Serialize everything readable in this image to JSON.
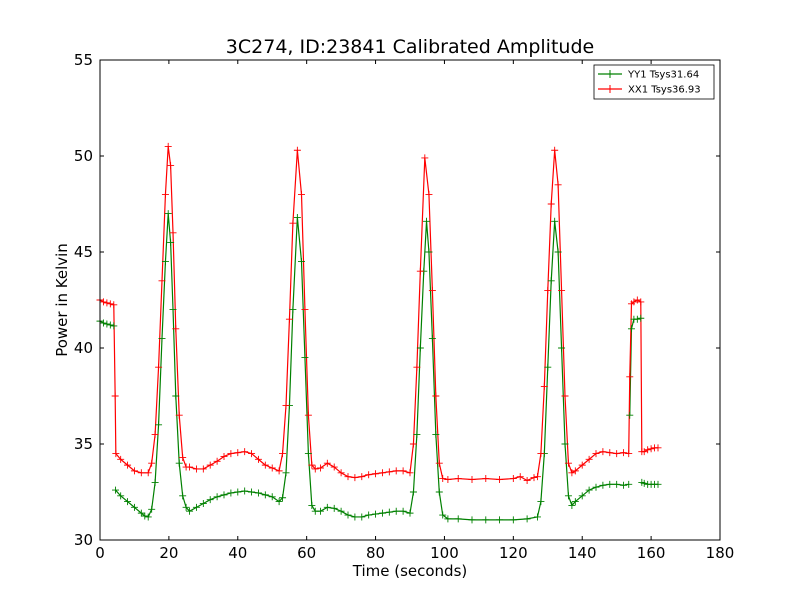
{
  "chart_data": {
    "type": "line",
    "title": "3C274, ID:23841 Calibrated Amplitude",
    "xlabel": "Time (seconds)",
    "ylabel": "Power in Kelvin",
    "xlim": [
      0,
      180
    ],
    "ylim": [
      30,
      55
    ],
    "xticks": [
      0,
      20,
      40,
      60,
      80,
      100,
      120,
      140,
      160,
      180
    ],
    "yticks": [
      30,
      35,
      40,
      45,
      50,
      55
    ],
    "grid": false,
    "legend_position": "top-right",
    "marker": "+",
    "series": [
      {
        "name": "YY1 Tsys31.64",
        "color": "#008000",
        "segments": [
          [
            [
              0,
              41.4
            ],
            [
              1,
              41.3
            ],
            [
              2,
              41.25
            ],
            [
              3,
              41.2
            ],
            [
              4,
              41.15
            ]
          ],
          [
            [
              4.5,
              32.6
            ],
            [
              6,
              32.3
            ],
            [
              8,
              32.0
            ],
            [
              10,
              31.7
            ],
            [
              12,
              31.4
            ],
            [
              13,
              31.25
            ],
            [
              14,
              31.2
            ],
            [
              15,
              31.6
            ],
            [
              16,
              33.0
            ],
            [
              17,
              36.0
            ],
            [
              18,
              40.5
            ],
            [
              19,
              44.5
            ],
            [
              19.8,
              47.0
            ],
            [
              20.5,
              45.5
            ],
            [
              21.2,
              42.0
            ],
            [
              22,
              37.5
            ],
            [
              23,
              34.0
            ],
            [
              24,
              32.3
            ],
            [
              25,
              31.7
            ],
            [
              26,
              31.5
            ],
            [
              28,
              31.7
            ],
            [
              30,
              31.9
            ],
            [
              32,
              32.1
            ],
            [
              34,
              32.25
            ],
            [
              36,
              32.35
            ],
            [
              38,
              32.45
            ],
            [
              40,
              32.5
            ],
            [
              42,
              32.55
            ],
            [
              44,
              32.5
            ],
            [
              46,
              32.45
            ],
            [
              48,
              32.35
            ],
            [
              50,
              32.25
            ],
            [
              52,
              32.0
            ],
            [
              53,
              32.2
            ],
            [
              54,
              33.5
            ],
            [
              55,
              37.0
            ],
            [
              56,
              42.0
            ],
            [
              57.3,
              46.8
            ],
            [
              58.5,
              44.5
            ],
            [
              59.5,
              39.5
            ],
            [
              60.5,
              34.5
            ],
            [
              61.5,
              31.8
            ],
            [
              62.5,
              31.5
            ],
            [
              64,
              31.5
            ],
            [
              66,
              31.7
            ],
            [
              68,
              31.65
            ],
            [
              70,
              31.5
            ],
            [
              72,
              31.3
            ],
            [
              74,
              31.2
            ],
            [
              76,
              31.2
            ],
            [
              78,
              31.3
            ],
            [
              80,
              31.35
            ],
            [
              82,
              31.4
            ],
            [
              84,
              31.45
            ],
            [
              86,
              31.5
            ],
            [
              88,
              31.5
            ],
            [
              90,
              31.4
            ],
            [
              91,
              32.5
            ],
            [
              92,
              35.5
            ],
            [
              93,
              40.0
            ],
            [
              94,
              44.0
            ],
            [
              94.8,
              46.6
            ],
            [
              95.5,
              45.0
            ],
            [
              96.5,
              40.5
            ],
            [
              97.5,
              35.5
            ],
            [
              98.5,
              32.5
            ],
            [
              99.5,
              31.3
            ],
            [
              101,
              31.1
            ],
            [
              104,
              31.1
            ],
            [
              108,
              31.05
            ],
            [
              112,
              31.05
            ],
            [
              116,
              31.05
            ],
            [
              120,
              31.05
            ],
            [
              124,
              31.1
            ],
            [
              127,
              31.2
            ],
            [
              128,
              32.0
            ],
            [
              129,
              34.5
            ],
            [
              130,
              39.0
            ],
            [
              131,
              43.5
            ],
            [
              132,
              46.6
            ],
            [
              133,
              45.0
            ],
            [
              134,
              40.0
            ],
            [
              135,
              35.0
            ],
            [
              136,
              32.3
            ],
            [
              137,
              31.8
            ],
            [
              138,
              32.0
            ],
            [
              140,
              32.3
            ],
            [
              142,
              32.6
            ],
            [
              144,
              32.75
            ],
            [
              146,
              32.85
            ],
            [
              148,
              32.9
            ],
            [
              150,
              32.9
            ],
            [
              152,
              32.85
            ],
            [
              153.5,
              32.9
            ]
          ],
          [
            [
              153.8,
              36.5
            ],
            [
              154.3,
              41.0
            ],
            [
              155,
              41.5
            ],
            [
              156,
              41.5
            ],
            [
              157,
              41.55
            ]
          ],
          [
            [
              157.3,
              33.0
            ],
            [
              158,
              32.95
            ],
            [
              159,
              32.9
            ],
            [
              160,
              32.9
            ],
            [
              161,
              32.9
            ],
            [
              162,
              32.9
            ]
          ]
        ]
      },
      {
        "name": "XX1 Tsys36.93",
        "color": "#ff0000",
        "segments": [
          [
            [
              0,
              42.5
            ],
            [
              1,
              42.4
            ],
            [
              2,
              42.35
            ],
            [
              3,
              42.3
            ],
            [
              4,
              42.25
            ],
            [
              4.4,
              37.5
            ],
            [
              4.6,
              34.5
            ],
            [
              6,
              34.2
            ],
            [
              8,
              33.9
            ],
            [
              10,
              33.6
            ],
            [
              12,
              33.5
            ],
            [
              14,
              33.5
            ],
            [
              15,
              34.0
            ],
            [
              16,
              35.5
            ],
            [
              17,
              39.0
            ],
            [
              18,
              43.5
            ],
            [
              19,
              48.0
            ],
            [
              19.8,
              50.5
            ],
            [
              20.5,
              49.5
            ],
            [
              21.2,
              46.0
            ],
            [
              22,
              41.0
            ],
            [
              23,
              36.5
            ],
            [
              24,
              34.3
            ],
            [
              25,
              33.8
            ],
            [
              26,
              33.8
            ],
            [
              28,
              33.7
            ],
            [
              30,
              33.7
            ],
            [
              32,
              33.9
            ],
            [
              34,
              34.1
            ],
            [
              36,
              34.35
            ],
            [
              38,
              34.5
            ],
            [
              40,
              34.55
            ],
            [
              42,
              34.6
            ],
            [
              44,
              34.5
            ],
            [
              46,
              34.2
            ],
            [
              48,
              33.9
            ],
            [
              50,
              33.75
            ],
            [
              52,
              33.6
            ],
            [
              53,
              34.5
            ],
            [
              54,
              37.0
            ],
            [
              55,
              41.5
            ],
            [
              56,
              46.5
            ],
            [
              57.3,
              50.3
            ],
            [
              58.5,
              48.0
            ],
            [
              59.5,
              42.0
            ],
            [
              60.5,
              36.5
            ],
            [
              61.5,
              33.9
            ],
            [
              62.5,
              33.7
            ],
            [
              64,
              33.75
            ],
            [
              66,
              34.0
            ],
            [
              68,
              33.8
            ],
            [
              70,
              33.5
            ],
            [
              72,
              33.3
            ],
            [
              74,
              33.25
            ],
            [
              76,
              33.3
            ],
            [
              78,
              33.4
            ],
            [
              80,
              33.45
            ],
            [
              82,
              33.5
            ],
            [
              84,
              33.55
            ],
            [
              86,
              33.6
            ],
            [
              88,
              33.6
            ],
            [
              90,
              33.5
            ],
            [
              91,
              35.0
            ],
            [
              92,
              39.0
            ],
            [
              93,
              44.0
            ],
            [
              94.3,
              49.9
            ],
            [
              95.5,
              48.0
            ],
            [
              96.5,
              43.0
            ],
            [
              97.5,
              37.5
            ],
            [
              98.5,
              34.0
            ],
            [
              99.5,
              33.2
            ],
            [
              101,
              33.15
            ],
            [
              104,
              33.2
            ],
            [
              108,
              33.15
            ],
            [
              112,
              33.2
            ],
            [
              116,
              33.15
            ],
            [
              120,
              33.2
            ],
            [
              122,
              33.3
            ],
            [
              124,
              33.1
            ],
            [
              126,
              33.25
            ],
            [
              127,
              33.3
            ],
            [
              128,
              34.5
            ],
            [
              129,
              38.0
            ],
            [
              130,
              43.0
            ],
            [
              131,
              47.5
            ],
            [
              132,
              50.3
            ],
            [
              133,
              48.5
            ],
            [
              134,
              43.0
            ],
            [
              135,
              37.5
            ],
            [
              136,
              34.0
            ],
            [
              137,
              33.5
            ],
            [
              138,
              33.6
            ],
            [
              140,
              33.9
            ],
            [
              142,
              34.2
            ],
            [
              144,
              34.5
            ],
            [
              146,
              34.6
            ],
            [
              148,
              34.55
            ],
            [
              150,
              34.5
            ],
            [
              152,
              34.55
            ],
            [
              153.5,
              34.5
            ],
            [
              153.8,
              38.5
            ],
            [
              154.3,
              42.3
            ],
            [
              155,
              42.4
            ],
            [
              156,
              42.5
            ],
            [
              157,
              42.4
            ],
            [
              157.3,
              34.6
            ],
            [
              158,
              34.6
            ],
            [
              159,
              34.7
            ],
            [
              160,
              34.75
            ],
            [
              161,
              34.8
            ],
            [
              162,
              34.8
            ]
          ]
        ]
      }
    ]
  }
}
